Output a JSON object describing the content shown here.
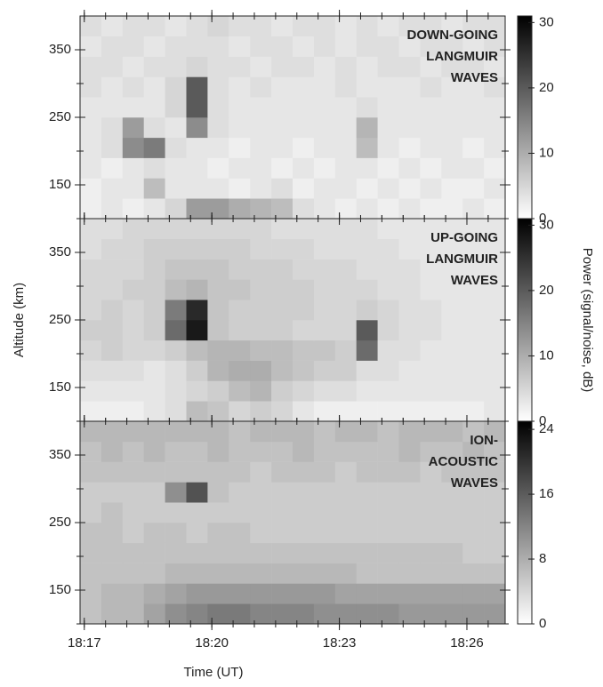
{
  "chart_data": {
    "type": "heatmap",
    "xlabel": "Time (UT)",
    "ylabel": "Altitude (km)",
    "colorbar_label": "Power (signal/noise, dB)",
    "colormap": "gray_r",
    "xlim": [
      16.9,
      26.9
    ],
    "ylim": [
      100,
      400
    ],
    "xticks": [
      {
        "value": 17,
        "label": "18:17"
      },
      {
        "value": 20,
        "label": "18:20"
      },
      {
        "value": 23,
        "label": "18:23"
      },
      {
        "value": 26,
        "label": "18:26"
      }
    ],
    "xminor": [
      17,
      17.5,
      18,
      18.5,
      19,
      19.5,
      20,
      20.5,
      21,
      21.5,
      22,
      22.5,
      23,
      23.5,
      24,
      24.5,
      25,
      25.5,
      26,
      26.5
    ],
    "yticks": [
      150,
      250,
      350
    ],
    "yminor": [
      100,
      200,
      300
    ],
    "x": [
      17.15,
      17.65,
      18.15,
      18.65,
      19.15,
      19.65,
      20.15,
      20.65,
      21.15,
      21.65,
      22.15,
      22.65,
      23.15,
      23.65,
      24.15,
      24.65,
      25.15,
      25.65,
      26.15,
      26.65
    ],
    "y": [
      115,
      145,
      175,
      205,
      235,
      265,
      295,
      325,
      355,
      385
    ],
    "panels": [
      {
        "annotation": [
          "DOWN-GOING",
          "LANGMUIR",
          "WAVES"
        ],
        "clim": [
          0,
          31
        ],
        "cticks": [
          0,
          10,
          20,
          30
        ],
        "z": [
          [
            2,
            3,
            2,
            3,
            5,
            12,
            12,
            10,
            9,
            8,
            4,
            3,
            2,
            3,
            2,
            3,
            2,
            2,
            3,
            2
          ],
          [
            2,
            3,
            3,
            8,
            3,
            3,
            3,
            2,
            3,
            4,
            2,
            3,
            3,
            2,
            3,
            2,
            3,
            2,
            2,
            3
          ],
          [
            3,
            2,
            3,
            4,
            3,
            3,
            2,
            3,
            3,
            2,
            3,
            2,
            3,
            3,
            2,
            3,
            2,
            3,
            3,
            2
          ],
          [
            3,
            4,
            14,
            16,
            4,
            3,
            3,
            2,
            3,
            3,
            2,
            3,
            3,
            8,
            3,
            2,
            3,
            3,
            2,
            3
          ],
          [
            3,
            4,
            12,
            4,
            3,
            14,
            4,
            3,
            3,
            3,
            3,
            3,
            3,
            9,
            3,
            3,
            3,
            3,
            3,
            3
          ],
          [
            3,
            3,
            3,
            3,
            5,
            20,
            4,
            3,
            3,
            3,
            3,
            3,
            3,
            4,
            3,
            3,
            3,
            3,
            3,
            3
          ],
          [
            4,
            3,
            4,
            3,
            5,
            20,
            4,
            3,
            4,
            3,
            3,
            3,
            4,
            3,
            3,
            3,
            4,
            3,
            3,
            4
          ],
          [
            4,
            4,
            3,
            4,
            4,
            5,
            4,
            4,
            3,
            4,
            4,
            3,
            4,
            3,
            4,
            4,
            3,
            4,
            4,
            3
          ],
          [
            3,
            4,
            4,
            3,
            4,
            4,
            4,
            3,
            4,
            4,
            3,
            4,
            3,
            4,
            4,
            3,
            4,
            4,
            3,
            4
          ],
          [
            4,
            3,
            4,
            4,
            3,
            4,
            5,
            4,
            4,
            3,
            4,
            4,
            3,
            4,
            3,
            4,
            4,
            3,
            4,
            4
          ]
        ]
      },
      {
        "annotation": [
          "UP-GOING",
          "LANGMUIR",
          "WAVES"
        ],
        "clim": [
          0,
          31
        ],
        "cticks": [
          0,
          10,
          20,
          30
        ],
        "z": [
          [
            2,
            2,
            2,
            3,
            4,
            8,
            7,
            5,
            6,
            5,
            3,
            2,
            2,
            2,
            2,
            2,
            2,
            2,
            2,
            3
          ],
          [
            3,
            3,
            3,
            3,
            4,
            5,
            6,
            8,
            9,
            6,
            5,
            4,
            4,
            3,
            3,
            3,
            3,
            3,
            3,
            3
          ],
          [
            4,
            4,
            4,
            3,
            4,
            6,
            9,
            10,
            10,
            8,
            7,
            6,
            6,
            4,
            4,
            3,
            3,
            3,
            3,
            3
          ],
          [
            5,
            6,
            5,
            5,
            6,
            8,
            9,
            9,
            8,
            8,
            7,
            7,
            6,
            18,
            4,
            4,
            3,
            3,
            3,
            3
          ],
          [
            6,
            6,
            5,
            6,
            18,
            28,
            7,
            6,
            6,
            6,
            5,
            5,
            5,
            20,
            5,
            4,
            4,
            3,
            3,
            3
          ],
          [
            5,
            6,
            5,
            6,
            16,
            26,
            7,
            6,
            6,
            6,
            6,
            5,
            5,
            6,
            5,
            4,
            4,
            3,
            3,
            3
          ],
          [
            5,
            5,
            6,
            6,
            8,
            9,
            7,
            7,
            6,
            6,
            6,
            5,
            5,
            5,
            4,
            4,
            3,
            3,
            3,
            3
          ],
          [
            5,
            5,
            5,
            6,
            7,
            7,
            7,
            6,
            6,
            6,
            5,
            5,
            5,
            4,
            4,
            4,
            3,
            3,
            3,
            3
          ],
          [
            4,
            5,
            5,
            6,
            6,
            6,
            6,
            6,
            5,
            5,
            5,
            4,
            4,
            4,
            4,
            3,
            3,
            3,
            3,
            3
          ],
          [
            4,
            4,
            5,
            5,
            5,
            5,
            5,
            5,
            5,
            4,
            4,
            4,
            4,
            4,
            3,
            3,
            3,
            3,
            3,
            3
          ]
        ]
      },
      {
        "annotation": [
          "ION-",
          "ACOUSTIC",
          "WAVES"
        ],
        "clim": [
          0,
          25
        ],
        "cticks": [
          0,
          8,
          16,
          24
        ],
        "z": [
          [
            6,
            7,
            7,
            9,
            11,
            12,
            13,
            13,
            12,
            12,
            12,
            11,
            11,
            11,
            11,
            10,
            10,
            10,
            10,
            10
          ],
          [
            6,
            7,
            7,
            8,
            9,
            10,
            10,
            10,
            10,
            10,
            10,
            10,
            9,
            9,
            9,
            9,
            9,
            9,
            9,
            9
          ],
          [
            6,
            6,
            6,
            6,
            7,
            7,
            7,
            7,
            7,
            7,
            7,
            7,
            7,
            6,
            6,
            6,
            6,
            6,
            6,
            6
          ],
          [
            6,
            6,
            6,
            6,
            6,
            6,
            6,
            6,
            6,
            6,
            6,
            6,
            6,
            6,
            6,
            6,
            6,
            6,
            5,
            5
          ],
          [
            6,
            6,
            5,
            6,
            6,
            5,
            6,
            6,
            5,
            5,
            5,
            5,
            5,
            5,
            5,
            5,
            5,
            5,
            5,
            5
          ],
          [
            5,
            6,
            5,
            5,
            5,
            5,
            5,
            5,
            5,
            5,
            5,
            5,
            5,
            5,
            5,
            5,
            5,
            5,
            5,
            5
          ],
          [
            5,
            5,
            5,
            5,
            11,
            17,
            6,
            5,
            5,
            5,
            5,
            5,
            5,
            5,
            5,
            5,
            5,
            5,
            5,
            5
          ],
          [
            6,
            6,
            6,
            6,
            6,
            6,
            6,
            6,
            5,
            6,
            6,
            6,
            5,
            6,
            6,
            6,
            5,
            6,
            6,
            6
          ],
          [
            6,
            7,
            6,
            7,
            6,
            6,
            7,
            6,
            6,
            6,
            7,
            6,
            6,
            6,
            6,
            7,
            6,
            6,
            7,
            6
          ],
          [
            7,
            7,
            7,
            7,
            7,
            7,
            7,
            6,
            7,
            7,
            7,
            6,
            7,
            7,
            6,
            7,
            7,
            7,
            6,
            7
          ]
        ]
      }
    ]
  }
}
